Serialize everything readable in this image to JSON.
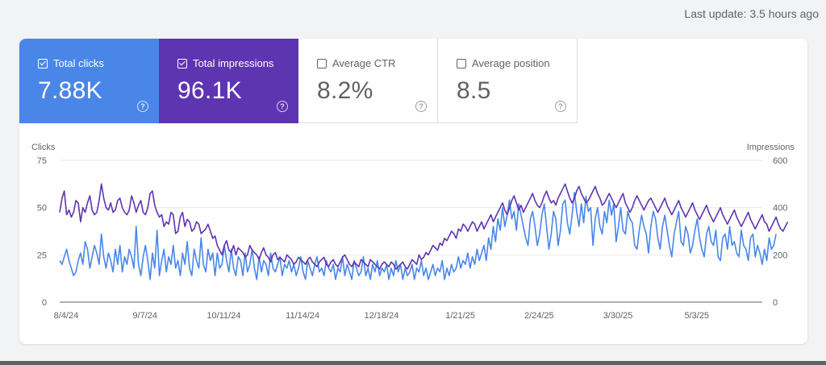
{
  "last_update": "Last update: 3.5 hours ago",
  "metrics": [
    {
      "label": "Total clicks",
      "value": "7.88K",
      "selected": true,
      "color": "#4a86e8",
      "help_icon": "?"
    },
    {
      "label": "Total impressions",
      "value": "96.1K",
      "selected": true,
      "color": "#5e35b1",
      "help_icon": "?"
    },
    {
      "label": "Average CTR",
      "value": "8.2%",
      "selected": false,
      "color": "#ffffff",
      "help_icon": "?"
    },
    {
      "label": "Average position",
      "value": "8.5",
      "selected": false,
      "color": "#ffffff",
      "help_icon": "?"
    }
  ],
  "chart_data": {
    "type": "line",
    "left_axis": {
      "label": "Clicks",
      "ticks": [
        "0",
        "25",
        "50",
        "75"
      ],
      "range": [
        0,
        75
      ]
    },
    "right_axis": {
      "label": "Impressions",
      "ticks": [
        "0",
        "200",
        "400",
        "600"
      ],
      "range": [
        0,
        600
      ]
    },
    "x_labels": [
      "8/4/24",
      "9/7/24",
      "10/11/24",
      "11/14/24",
      "12/18/24",
      "1/21/25",
      "2/24/25",
      "3/30/25",
      "5/3/25"
    ],
    "x_label_day_index": [
      0,
      34,
      68,
      102,
      136,
      170,
      204,
      238,
      272
    ],
    "total_days": 303,
    "grid": true,
    "series": [
      {
        "name": "Total clicks",
        "axis": "left",
        "color": "#4a86e8",
        "values": [
          22,
          20,
          24,
          28,
          22,
          18,
          14,
          16,
          22,
          26,
          20,
          32,
          28,
          18,
          24,
          30,
          26,
          20,
          36,
          24,
          18,
          26,
          22,
          16,
          28,
          20,
          30,
          16,
          24,
          20,
          28,
          24,
          18,
          40,
          20,
          14,
          24,
          30,
          22,
          12,
          26,
          18,
          38,
          14,
          22,
          28,
          16,
          24,
          20,
          30,
          18,
          22,
          14,
          26,
          20,
          32,
          18,
          14,
          28,
          22,
          18,
          34,
          20,
          16,
          28,
          22,
          26,
          14,
          26,
          18,
          20,
          30,
          22,
          16,
          28,
          18,
          14,
          24,
          22,
          14,
          26,
          16,
          20,
          28,
          18,
          12,
          24,
          16,
          22,
          20,
          14,
          26,
          18,
          16,
          20,
          24,
          14,
          20,
          18,
          22,
          16,
          20,
          14,
          18,
          24,
          16,
          12,
          22,
          18,
          14,
          20,
          24,
          16,
          18,
          14,
          22,
          18,
          16,
          20,
          12,
          18,
          16,
          24,
          14,
          20,
          16,
          12,
          22,
          18,
          14,
          16,
          24,
          14,
          18,
          12,
          20,
          16,
          22,
          14,
          18,
          16,
          20,
          12,
          18,
          14,
          22,
          16,
          20,
          12,
          18,
          14,
          16,
          20,
          12,
          18,
          16,
          22,
          14,
          18,
          12,
          16,
          20,
          14,
          18,
          16,
          22,
          12,
          18,
          14,
          20,
          16,
          18,
          24,
          18,
          22,
          20,
          26,
          18,
          24,
          20,
          28,
          22,
          26,
          30,
          22,
          34,
          28,
          40,
          32,
          44,
          38,
          50,
          40,
          46,
          54,
          44,
          48,
          38,
          52,
          46,
          40,
          34,
          30,
          44,
          48,
          40,
          30,
          36,
          46,
          52,
          40,
          28,
          36,
          48,
          44,
          30,
          38,
          52,
          54,
          42,
          36,
          46,
          58,
          48,
          40,
          52,
          42,
          56,
          48,
          50,
          30,
          44,
          50,
          40,
          36,
          48,
          42,
          54,
          46,
          52,
          32,
          40,
          50,
          38,
          36,
          48,
          44,
          42,
          30,
          28,
          38,
          46,
          40,
          36,
          26,
          40,
          48,
          44,
          34,
          28,
          40,
          46,
          38,
          30,
          24,
          36,
          42,
          48,
          32,
          30,
          40,
          36,
          26,
          30,
          38,
          44,
          34,
          28,
          24,
          36,
          40,
          32,
          30,
          38,
          24,
          22,
          34,
          36,
          28,
          40,
          30,
          32,
          26,
          24,
          38,
          30,
          28,
          22,
          34,
          36,
          24,
          30,
          26,
          20,
          28,
          22,
          34,
          28,
          30,
          36
        ],
        "note_range": [
          0,
          75
        ]
      },
      {
        "name": "Total impressions",
        "axis": "right",
        "color": "#5e35b1",
        "values": [
          380,
          440,
          470,
          370,
          390,
          360,
          380,
          430,
          420,
          340,
          400,
          380,
          420,
          450,
          390,
          370,
          380,
          430,
          500,
          440,
          400,
          390,
          420,
          380,
          390,
          430,
          440,
          400,
          380,
          370,
          390,
          450,
          420,
          380,
          410,
          430,
          380,
          370,
          400,
          460,
          470,
          410,
          380,
          360,
          370,
          320,
          340,
          330,
          380,
          370,
          290,
          300,
          360,
          380,
          320,
          350,
          340,
          300,
          310,
          340,
          330,
          290,
          300,
          310,
          330,
          300,
          270,
          280,
          240,
          220,
          200,
          240,
          260,
          220,
          210,
          240,
          200,
          230,
          220,
          210,
          190,
          200,
          240,
          220,
          210,
          200,
          180,
          210,
          230,
          200,
          190,
          170,
          200,
          210,
          180,
          190,
          180,
          170,
          200,
          190,
          180,
          160,
          170,
          190,
          180,
          170,
          160,
          180,
          190,
          170,
          160,
          150,
          170,
          180,
          190,
          160,
          150,
          170,
          180,
          160,
          150,
          170,
          190,
          200,
          180,
          160,
          150,
          170,
          160,
          150,
          180,
          170,
          160,
          150,
          180,
          170,
          160,
          150,
          140,
          160,
          170,
          160,
          150,
          170,
          160,
          140,
          150,
          160,
          170,
          150,
          140,
          160,
          180,
          170,
          160,
          200,
          180,
          190,
          210,
          200,
          220,
          240,
          230,
          220,
          250,
          240,
          270,
          260,
          280,
          300,
          290,
          270,
          310,
          300,
          330,
          320,
          300,
          320,
          340,
          330,
          300,
          320,
          340,
          310,
          330,
          350,
          370,
          340,
          360,
          380,
          400,
          420,
          390,
          370,
          400,
          430,
          450,
          420,
          390,
          410,
          380,
          400,
          420,
          440,
          460,
          430,
          410,
          400,
          420,
          450,
          470,
          440,
          420,
          430,
          410,
          440,
          460,
          480,
          500,
          470,
          440,
          420,
          440,
          470,
          490,
          460,
          440,
          420,
          430,
          450,
          470,
          490,
          460,
          440,
          410,
          420,
          440,
          460,
          440,
          420,
          400,
          420,
          440,
          460,
          420,
          400,
          380,
          400,
          430,
          450,
          430,
          410,
          390,
          410,
          430,
          440,
          420,
          400,
          380,
          400,
          420,
          440,
          410,
          390,
          370,
          390,
          410,
          430,
          400,
          380,
          360,
          380,
          400,
          420,
          390,
          370,
          350,
          370,
          390,
          410,
          380,
          360,
          340,
          360,
          380,
          400,
          370,
          350,
          330,
          350,
          370,
          390,
          360,
          340,
          320,
          340,
          360,
          380,
          350,
          330,
          310,
          330,
          350,
          370,
          340,
          330,
          300,
          320,
          340,
          360,
          330,
          310,
          300,
          320,
          340
        ]
      }
    ]
  }
}
